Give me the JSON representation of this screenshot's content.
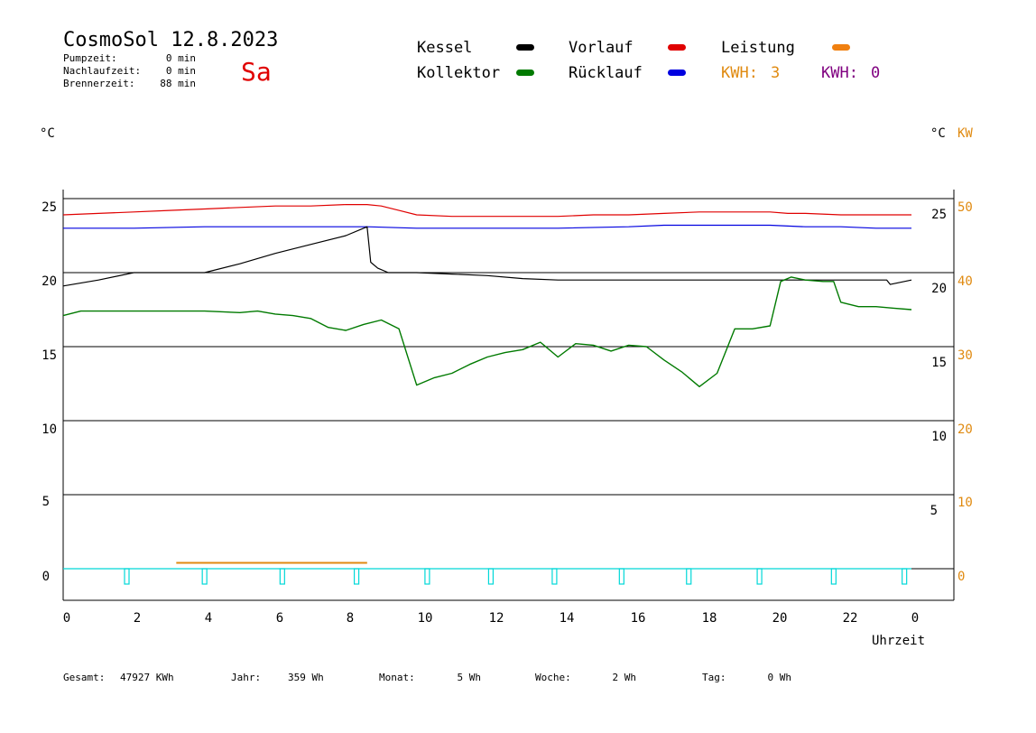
{
  "header": {
    "title": "CosmoSol 12.8.2023",
    "weekday": "Sa",
    "stats": [
      {
        "label": "Pumpzeit:",
        "value": "0 min"
      },
      {
        "label": "Nachlaufzeit:",
        "value": "0 min"
      },
      {
        "label": "Brennerzeit:",
        "value": "88 min"
      }
    ]
  },
  "legend": [
    {
      "label": "Kessel",
      "color": "#000000"
    },
    {
      "label": "Vorlauf",
      "color": "#e00000"
    },
    {
      "label": "Leistung",
      "color": "#f08010"
    },
    {
      "label": "Kollektor",
      "color": "#007a00"
    },
    {
      "label": "Rücklauf",
      "color": "#0000e0"
    }
  ],
  "kwh": [
    {
      "label": "KWH:",
      "value": "3",
      "color": "#e08a10"
    },
    {
      "label": "KWH:",
      "value": "0",
      "color": "#800080"
    }
  ],
  "axes": {
    "left_unit": "°C",
    "right_unit": "°C",
    "right_unit2": "KW",
    "xlabel": "Uhrzeit",
    "left_ticks": [
      "25",
      "20",
      "15",
      "10",
      "5",
      "0"
    ],
    "right_ticks_c": [
      "25",
      "20",
      "15",
      "10",
      "5"
    ],
    "right_ticks_kw": [
      "50",
      "40",
      "30",
      "20",
      "10",
      "0"
    ],
    "x_ticks": [
      "0",
      "2",
      "4",
      "6",
      "8",
      "10",
      "12",
      "14",
      "16",
      "18",
      "20",
      "22",
      "0"
    ]
  },
  "footer": [
    {
      "label": "Gesamt:",
      "value": "47927 KWh"
    },
    {
      "label": "Jahr:",
      "value": "359 Wh"
    },
    {
      "label": "Monat:",
      "value": "5 Wh"
    },
    {
      "label": "Woche:",
      "value": "2 Wh"
    },
    {
      "label": "Tag:",
      "value": "0 Wh"
    }
  ],
  "chart_data": {
    "type": "line",
    "title": "CosmoSol 12.8.2023",
    "xlabel": "Uhrzeit",
    "ylabel": "°C",
    "xlim": [
      0,
      24
    ],
    "ylim": [
      -2,
      25.5
    ],
    "grid": true,
    "series": [
      {
        "name": "Vorlauf",
        "color": "#e00000",
        "x": [
          0,
          1,
          2,
          3,
          4,
          5,
          6,
          7,
          8,
          8.6,
          9,
          9.5,
          10,
          11,
          12,
          13,
          14,
          15,
          16,
          17,
          18,
          19,
          20,
          20.5,
          21,
          22,
          23,
          24
        ],
        "y": [
          23.9,
          24.0,
          24.1,
          24.2,
          24.3,
          24.4,
          24.5,
          24.5,
          24.6,
          24.6,
          24.5,
          24.2,
          23.9,
          23.8,
          23.8,
          23.8,
          23.8,
          23.9,
          23.9,
          24.0,
          24.1,
          24.1,
          24.1,
          24.0,
          24.0,
          23.9,
          23.9,
          23.9
        ]
      },
      {
        "name": "Rücklauf",
        "color": "#0000e0",
        "x": [
          0,
          2,
          4,
          6,
          8,
          8.6,
          10,
          12,
          14,
          16,
          17,
          18,
          19,
          20,
          21,
          22,
          23,
          24
        ],
        "y": [
          23.0,
          23.0,
          23.1,
          23.1,
          23.1,
          23.1,
          23.0,
          23.0,
          23.0,
          23.1,
          23.2,
          23.2,
          23.2,
          23.2,
          23.1,
          23.1,
          23.0,
          23.0
        ]
      },
      {
        "name": "Kessel",
        "color": "#000000",
        "x": [
          0,
          1,
          2,
          3,
          4,
          5,
          6,
          7,
          8,
          8.6,
          8.7,
          8.9,
          9.2,
          10,
          11,
          12,
          13,
          14,
          16,
          18,
          20,
          22,
          23.3,
          23.4,
          24
        ],
        "y": [
          19.1,
          19.5,
          20.0,
          20.0,
          20.0,
          20.6,
          21.3,
          21.9,
          22.5,
          23.1,
          20.7,
          20.3,
          20.0,
          20.0,
          19.9,
          19.8,
          19.6,
          19.5,
          19.5,
          19.5,
          19.5,
          19.5,
          19.5,
          19.2,
          19.5
        ]
      },
      {
        "name": "Kollektor",
        "color": "#007a00",
        "x": [
          0,
          0.5,
          1,
          2,
          3,
          4,
          5,
          5.5,
          6,
          6.5,
          7,
          7.5,
          8,
          8.5,
          9,
          9.5,
          10,
          10.5,
          11,
          11.5,
          12,
          12.5,
          13,
          13.5,
          14,
          14.5,
          15,
          15.5,
          16,
          16.5,
          17,
          17.5,
          18,
          18.5,
          19,
          19.5,
          20,
          20.3,
          20.6,
          21,
          21.5,
          21.8,
          22,
          22.5,
          23,
          23.5,
          24
        ],
        "y": [
          17.1,
          17.4,
          17.4,
          17.4,
          17.4,
          17.4,
          17.3,
          17.4,
          17.2,
          17.1,
          16.9,
          16.3,
          16.1,
          16.5,
          16.8,
          16.2,
          12.4,
          12.9,
          13.2,
          13.8,
          14.3,
          14.6,
          14.8,
          15.3,
          14.3,
          15.2,
          15.1,
          14.7,
          15.1,
          15.0,
          14.1,
          13.3,
          12.3,
          13.2,
          16.2,
          16.2,
          16.4,
          19.4,
          19.7,
          19.5,
          19.4,
          19.4,
          18.0,
          17.7,
          17.7,
          17.6,
          17.5
        ]
      }
    ],
    "leistung": {
      "name": "Leistung",
      "unit": "KW",
      "color": "#e08a10",
      "x": [
        3.2,
        8.6
      ],
      "value": 0.3
    },
    "pump_markers": {
      "color": "#00d8d8",
      "x": [
        1.8,
        4.0,
        6.2,
        8.3,
        10.3,
        12.1,
        13.9,
        15.8,
        17.7,
        19.7,
        21.8,
        23.8
      ]
    }
  }
}
